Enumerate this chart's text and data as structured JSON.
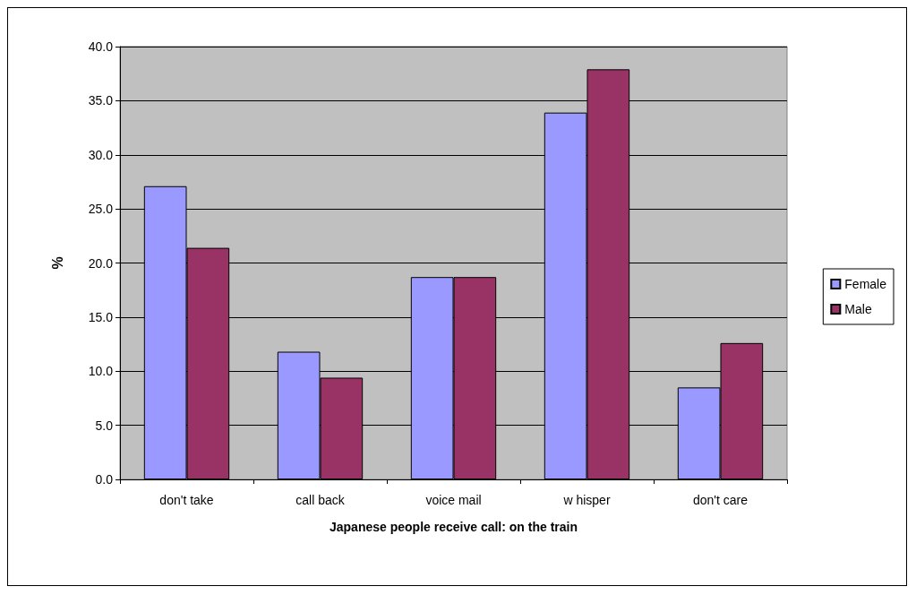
{
  "chart_data": {
    "type": "bar",
    "xlabel": "Japanese people receive call: on the train",
    "ylabel": "%",
    "categories": [
      "don't take",
      "call back",
      "voice mail",
      "w hisper",
      "don't care"
    ],
    "series": [
      {
        "name": "Female",
        "color": "#9999ff",
        "values": [
          27.1,
          11.8,
          18.7,
          33.9,
          8.5
        ]
      },
      {
        "name": "Male",
        "color": "#993366",
        "values": [
          21.4,
          9.4,
          18.7,
          37.9,
          12.6
        ]
      }
    ],
    "ylim": [
      0,
      40
    ],
    "yticks": [
      {
        "value": 0,
        "label": "0.0"
      },
      {
        "value": 5,
        "label": "5.0"
      },
      {
        "value": 10,
        "label": "10.0"
      },
      {
        "value": 15,
        "label": "15.0"
      },
      {
        "value": 20,
        "label": "20.0"
      },
      {
        "value": 25,
        "label": "25.0"
      },
      {
        "value": 30,
        "label": "30.0"
      },
      {
        "value": 35,
        "label": "35.0"
      },
      {
        "value": 40,
        "label": "40.0"
      }
    ],
    "grid": "y",
    "legend": "right"
  }
}
